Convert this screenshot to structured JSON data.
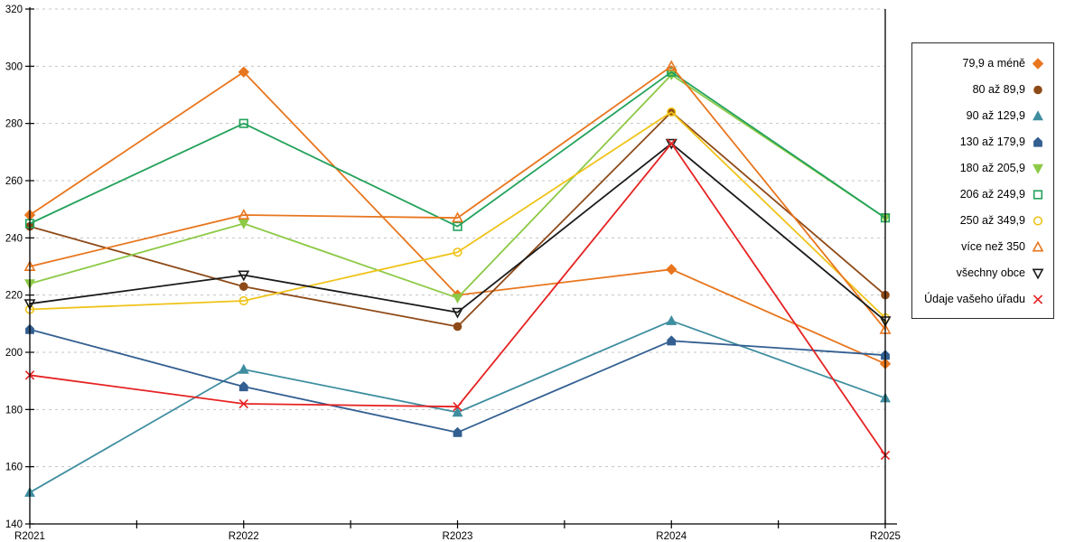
{
  "chart_data": {
    "type": "line",
    "title": "",
    "xlabel": "",
    "ylabel": "",
    "categories": [
      "R2021",
      "R2022",
      "R2023",
      "R2024",
      "R2025"
    ],
    "ylim": [
      140,
      320
    ],
    "ytick_step": 20,
    "yticks": [
      140,
      160,
      180,
      200,
      220,
      240,
      260,
      280,
      300,
      320
    ],
    "grid": "horizontal-dashed",
    "legend_position": "right-outside",
    "series": [
      {
        "name": "79,9 a méně",
        "color": "#E8761E",
        "marker": "diamond",
        "filled": true,
        "values": [
          248,
          298,
          220,
          229,
          196
        ]
      },
      {
        "name": "80 až 89,9",
        "color": "#8E4A17",
        "marker": "circle",
        "filled": true,
        "values": [
          244,
          223,
          209,
          284,
          220
        ]
      },
      {
        "name": "90 až 129,9",
        "color": "#3F8EA0",
        "marker": "triangle-up",
        "filled": true,
        "values": [
          151,
          194,
          179,
          211,
          184
        ]
      },
      {
        "name": "130 až 179,9",
        "color": "#335F91",
        "marker": "house",
        "filled": true,
        "values": [
          208,
          188,
          172,
          204,
          199
        ]
      },
      {
        "name": "180 až 205,9",
        "color": "#8CC945",
        "marker": "triangle-down",
        "filled": true,
        "values": [
          224,
          245,
          219,
          297,
          247
        ]
      },
      {
        "name": "206 až 249,9",
        "color": "#22A25B",
        "marker": "square",
        "filled": false,
        "values": [
          245,
          280,
          244,
          298,
          247
        ]
      },
      {
        "name": "250 až 349,9",
        "color": "#EFC319",
        "marker": "circle",
        "filled": false,
        "values": [
          215,
          218,
          235,
          284,
          212
        ]
      },
      {
        "name": "více než 350",
        "color": "#E8761E",
        "marker": "triangle-up",
        "filled": false,
        "values": [
          230,
          248,
          247,
          300,
          208
        ]
      },
      {
        "name": "všechny obce",
        "color": "#1A1A1A",
        "marker": "triangle-down",
        "filled": false,
        "values": [
          217,
          227,
          214,
          273,
          211
        ]
      },
      {
        "name": "Údaje vašeho úřadu",
        "color": "#E62222",
        "marker": "x",
        "filled": false,
        "values": [
          192,
          182,
          181,
          273,
          164
        ]
      }
    ],
    "style": {
      "grid_color": "#C4C4C4",
      "axis_color": "#000000",
      "background": "#FFFFFF",
      "line_width": 1.8
    }
  }
}
